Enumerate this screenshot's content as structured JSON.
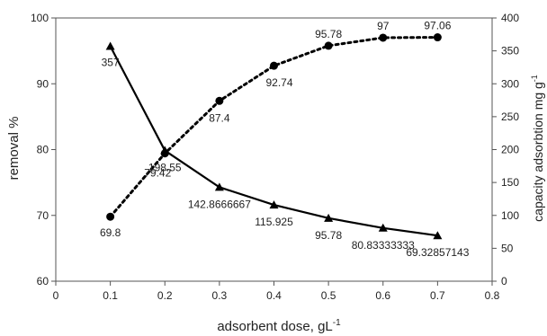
{
  "chart_data": {
    "type": "line",
    "title": "",
    "xlabel": "adsorbent dose, gL",
    "xlabel_sup": "-1",
    "ylabel_left": "removal %",
    "ylabel_right": "capacity adsorbtion mg g",
    "ylabel_right_sup": "-1",
    "xlim": [
      0,
      0.8
    ],
    "ylim_left": [
      60,
      100
    ],
    "ylim_right": [
      0,
      400
    ],
    "x_ticks": [
      "0",
      "0.1",
      "0.2",
      "0.3",
      "0.4",
      "0.5",
      "0.6",
      "0.7",
      "0.8"
    ],
    "y_left_ticks": [
      "60",
      "70",
      "80",
      "90",
      "100"
    ],
    "y_right_ticks": [
      "0",
      "50",
      "100",
      "150",
      "200",
      "250",
      "300",
      "350",
      "400"
    ],
    "grid": false,
    "legend": "none",
    "series": [
      {
        "axis": "left",
        "style": "dotted",
        "marker": "circle",
        "color": "#000000",
        "x": [
          0.1,
          0.2,
          0.3,
          0.4,
          0.5,
          0.6,
          0.7
        ],
        "values": [
          69.8,
          79.42,
          87.4,
          92.74,
          95.78,
          97,
          97.06
        ],
        "labels": [
          "69.8",
          "79.42",
          "87.4",
          "92.74",
          "95.78",
          "97",
          "97.06"
        ]
      },
      {
        "axis": "right",
        "style": "solid",
        "marker": "triangle",
        "color": "#000000",
        "x": [
          0.1,
          0.2,
          0.3,
          0.4,
          0.5,
          0.6,
          0.7
        ],
        "values": [
          357,
          198.55,
          142.8666667,
          115.925,
          95.78,
          80.83333333,
          69.32857143
        ],
        "labels": [
          "357",
          "198.55",
          "142.8666667",
          "115.925",
          "95.78",
          "80.83333333",
          "69.32857143"
        ]
      }
    ]
  }
}
